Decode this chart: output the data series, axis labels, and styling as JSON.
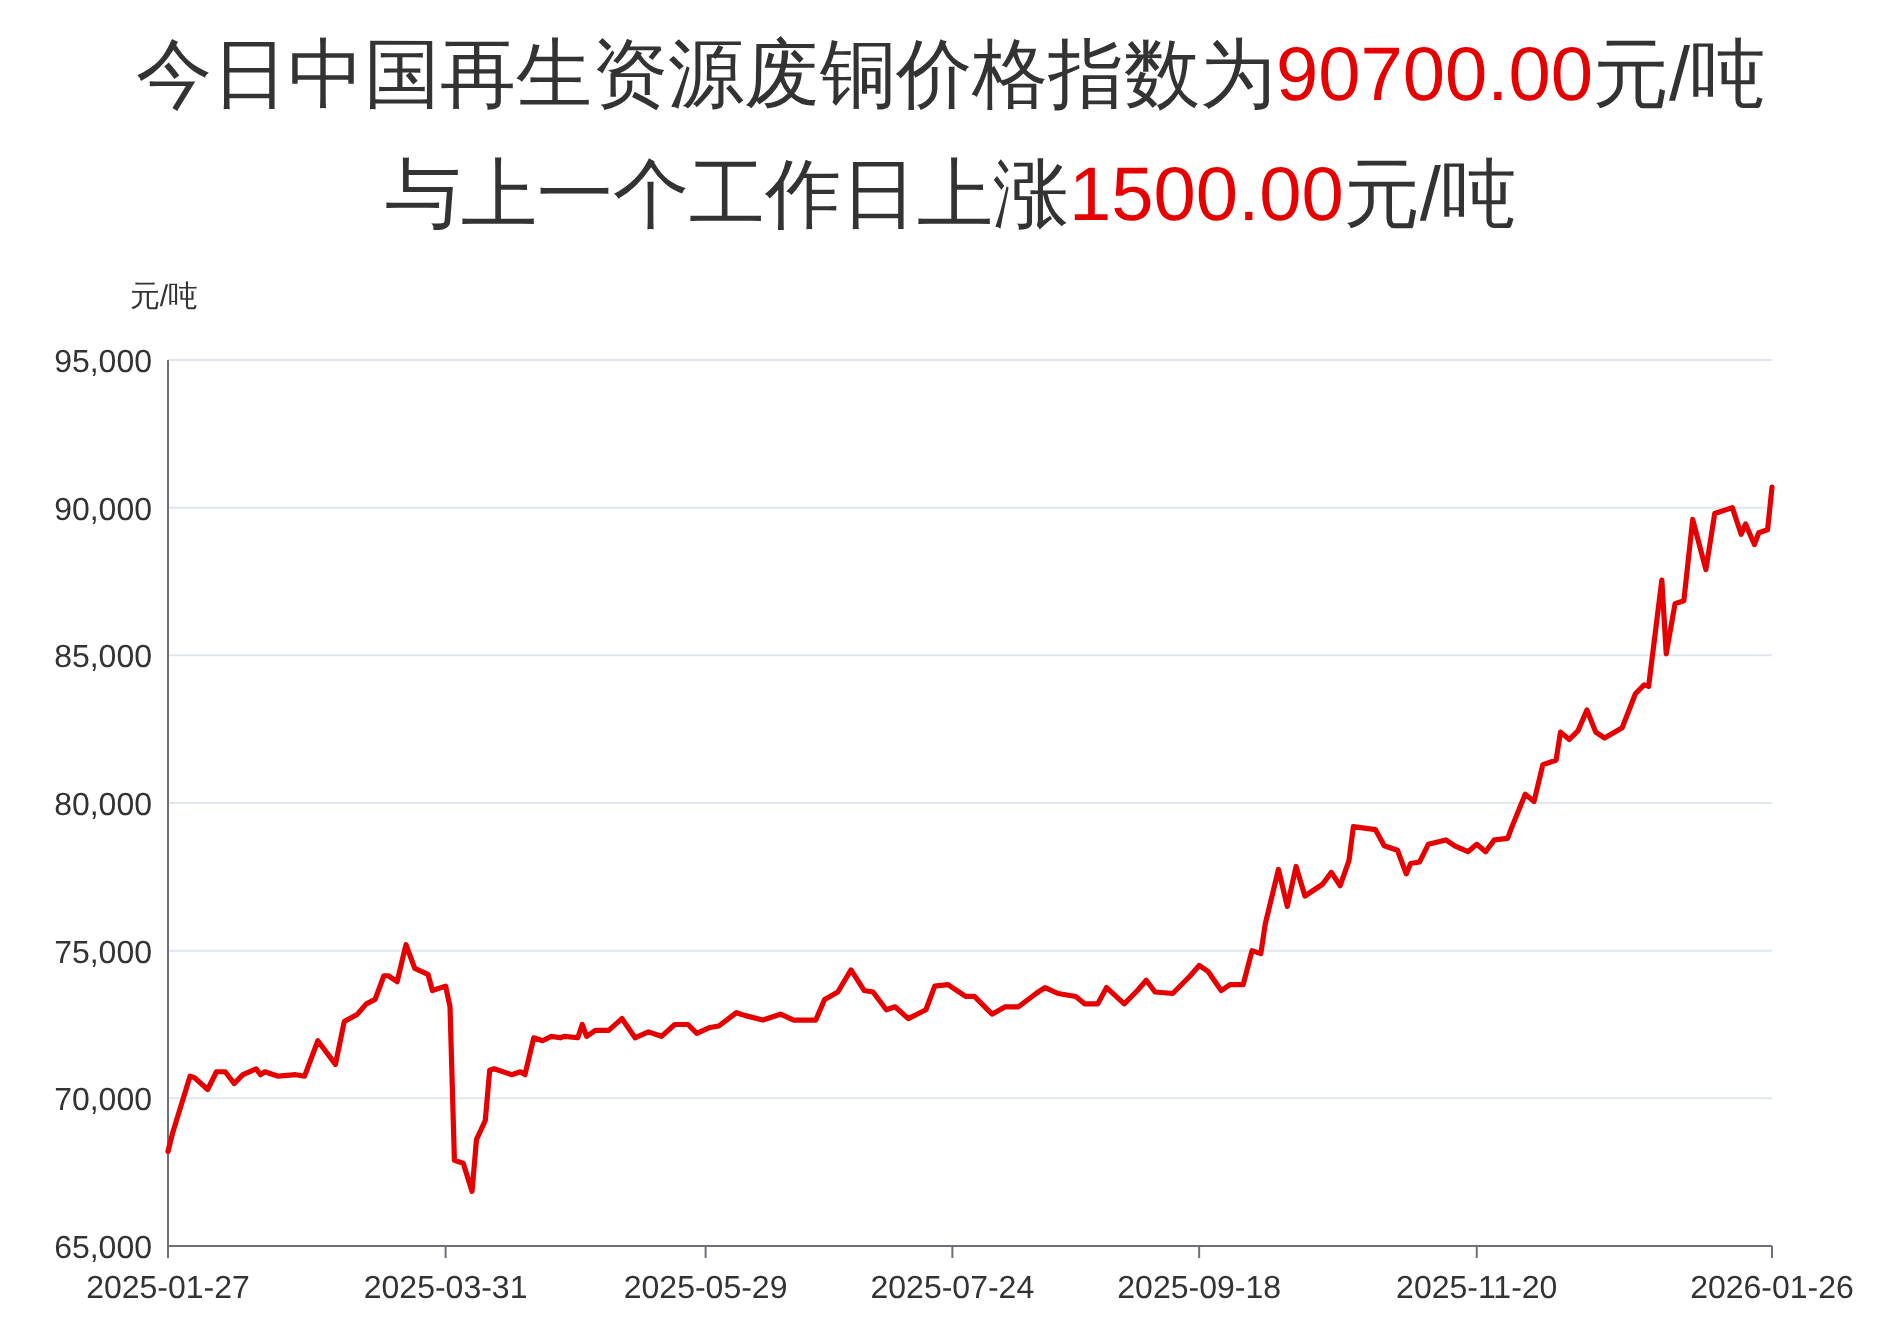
{
  "chart_data": {
    "type": "line",
    "title": "今日中国再生资源废铜价格指数为90700.00元/吨",
    "subtitle": "与上一个工作日上涨1500.00元/吨",
    "ylabel": "元/吨",
    "xlim": [
      "2025-01-27",
      "2026-01-26"
    ],
    "xticks": [
      "2025-01-27",
      "2025-03-31",
      "2025-05-29",
      "2025-07-24",
      "2025-09-18",
      "2025-11-20",
      "2026-01-26"
    ],
    "ylim": [
      65000,
      95000
    ],
    "yticks": [
      {
        "value": 65000,
        "label": "65,000"
      },
      {
        "value": 70000,
        "label": "70,000"
      },
      {
        "value": 75000,
        "label": "75,000"
      },
      {
        "value": 80000,
        "label": "80,000"
      },
      {
        "value": 85000,
        "label": "85,000"
      },
      {
        "value": 90000,
        "label": "90,000"
      },
      {
        "value": 95000,
        "label": "95,000"
      }
    ],
    "grid": "y",
    "marker": "none",
    "line_style": "solid",
    "series": [
      {
        "color": "#e60000",
        "x": [
          "2025-01-27",
          "2025-01-28",
          "2025-02-01",
          "2025-02-02",
          "2025-02-05",
          "2025-02-07",
          "2025-02-09",
          "2025-02-11",
          "2025-02-13",
          "2025-02-16",
          "2025-02-17",
          "2025-02-18",
          "2025-02-21",
          "2025-02-25",
          "2025-02-27",
          "2025-03-02",
          "2025-03-06",
          "2025-03-08",
          "2025-03-11",
          "2025-03-13",
          "2025-03-15",
          "2025-03-17",
          "2025-03-18",
          "2025-03-20",
          "2025-03-22",
          "2025-03-24",
          "2025-03-27",
          "2025-03-28",
          "2025-03-31",
          "2025-04-01",
          "2025-04-02",
          "2025-04-04",
          "2025-04-06",
          "2025-04-07",
          "2025-04-09",
          "2025-04-10",
          "2025-04-11",
          "2025-04-15",
          "2025-04-17",
          "2025-04-18",
          "2025-04-20",
          "2025-04-22",
          "2025-04-24",
          "2025-04-26",
          "2025-04-27",
          "2025-04-30",
          "2025-05-01",
          "2025-05-02",
          "2025-05-04",
          "2025-05-07",
          "2025-05-10",
          "2025-05-13",
          "2025-05-16",
          "2025-05-19",
          "2025-05-22",
          "2025-05-25",
          "2025-05-27",
          "2025-05-30",
          "2025-06-01",
          "2025-06-05",
          "2025-06-07",
          "2025-06-11",
          "2025-06-15",
          "2025-06-18",
          "2025-06-23",
          "2025-06-25",
          "2025-06-28",
          "2025-07-01",
          "2025-07-04",
          "2025-07-06",
          "2025-07-09",
          "2025-07-11",
          "2025-07-14",
          "2025-07-18",
          "2025-07-20",
          "2025-07-23",
          "2025-07-27",
          "2025-07-29",
          "2025-08-02",
          "2025-08-05",
          "2025-08-08",
          "2025-08-12",
          "2025-08-14",
          "2025-08-17",
          "2025-08-21",
          "2025-08-23",
          "2025-08-26",
          "2025-08-28",
          "2025-09-01",
          "2025-09-04",
          "2025-09-06",
          "2025-09-08",
          "2025-09-12",
          "2025-09-16",
          "2025-09-18",
          "2025-09-20",
          "2025-09-23",
          "2025-09-25",
          "2025-09-28",
          "2025-09-30",
          "2025-10-02",
          "2025-10-03",
          "2025-10-06",
          "2025-10-08",
          "2025-10-10",
          "2025-10-12",
          "2025-10-16",
          "2025-10-18",
          "2025-10-20",
          "2025-10-22",
          "2025-10-23",
          "2025-10-28",
          "2025-10-30",
          "2025-11-02",
          "2025-11-04",
          "2025-11-05",
          "2025-11-07",
          "2025-11-09",
          "2025-11-13",
          "2025-11-15",
          "2025-11-18",
          "2025-11-20",
          "2025-11-22",
          "2025-11-24",
          "2025-11-27",
          "2025-11-28",
          "2025-12-01",
          "2025-12-03",
          "2025-12-05",
          "2025-12-08",
          "2025-12-09",
          "2025-12-11",
          "2025-12-13",
          "2025-12-15",
          "2025-12-17",
          "2025-12-19",
          "2025-12-23",
          "2025-12-26",
          "2025-12-28",
          "2025-12-29",
          "2026-01-01",
          "2026-01-02",
          "2026-01-04",
          "2026-01-06",
          "2026-01-08",
          "2026-01-11",
          "2026-01-13",
          "2026-01-17",
          "2026-01-19",
          "2026-01-20",
          "2026-01-22",
          "2026-01-23",
          "2026-01-25",
          "2026-01-26"
        ],
        "values": [
          68200,
          68800,
          70750,
          70700,
          70300,
          70900,
          70900,
          70500,
          70800,
          71000,
          70800,
          70900,
          70750,
          70800,
          70750,
          71950,
          71150,
          72600,
          72850,
          73200,
          73350,
          74150,
          74150,
          73950,
          75200,
          74400,
          74200,
          73650,
          73800,
          73100,
          67900,
          67800,
          66850,
          68600,
          69250,
          70950,
          71000,
          70800,
          70900,
          70800,
          72050,
          71950,
          72100,
          72050,
          72100,
          72050,
          72500,
          72100,
          72300,
          72300,
          72700,
          72050,
          72250,
          72100,
          72500,
          72500,
          72200,
          72400,
          72450,
          72900,
          72800,
          72650,
          72850,
          72650,
          72650,
          73350,
          73600,
          74350,
          73650,
          73600,
          73000,
          73100,
          72700,
          73000,
          73800,
          73850,
          73450,
          73450,
          72850,
          73100,
          73100,
          73550,
          73750,
          73550,
          73450,
          73200,
          73200,
          73750,
          73200,
          73650,
          74000,
          73600,
          73550,
          74150,
          74500,
          74300,
          73650,
          73850,
          73850,
          75000,
          74900,
          75900,
          77750,
          76500,
          77850,
          76850,
          77250,
          77650,
          77200,
          78050,
          79200,
          79100,
          78550,
          78400,
          77600,
          77950,
          78000,
          78600,
          78750,
          78550,
          78350,
          78600,
          78350,
          78750,
          78800,
          79200,
          80300,
          80050,
          81300,
          81450,
          82400,
          82150,
          82450,
          83150,
          82400,
          82200,
          82550,
          83700,
          84000,
          83950,
          87550,
          85050,
          86750,
          86850,
          89600,
          87900,
          89800,
          90000,
          89100,
          89450,
          88750,
          89150,
          89250,
          90700
        ]
      }
    ]
  }
}
